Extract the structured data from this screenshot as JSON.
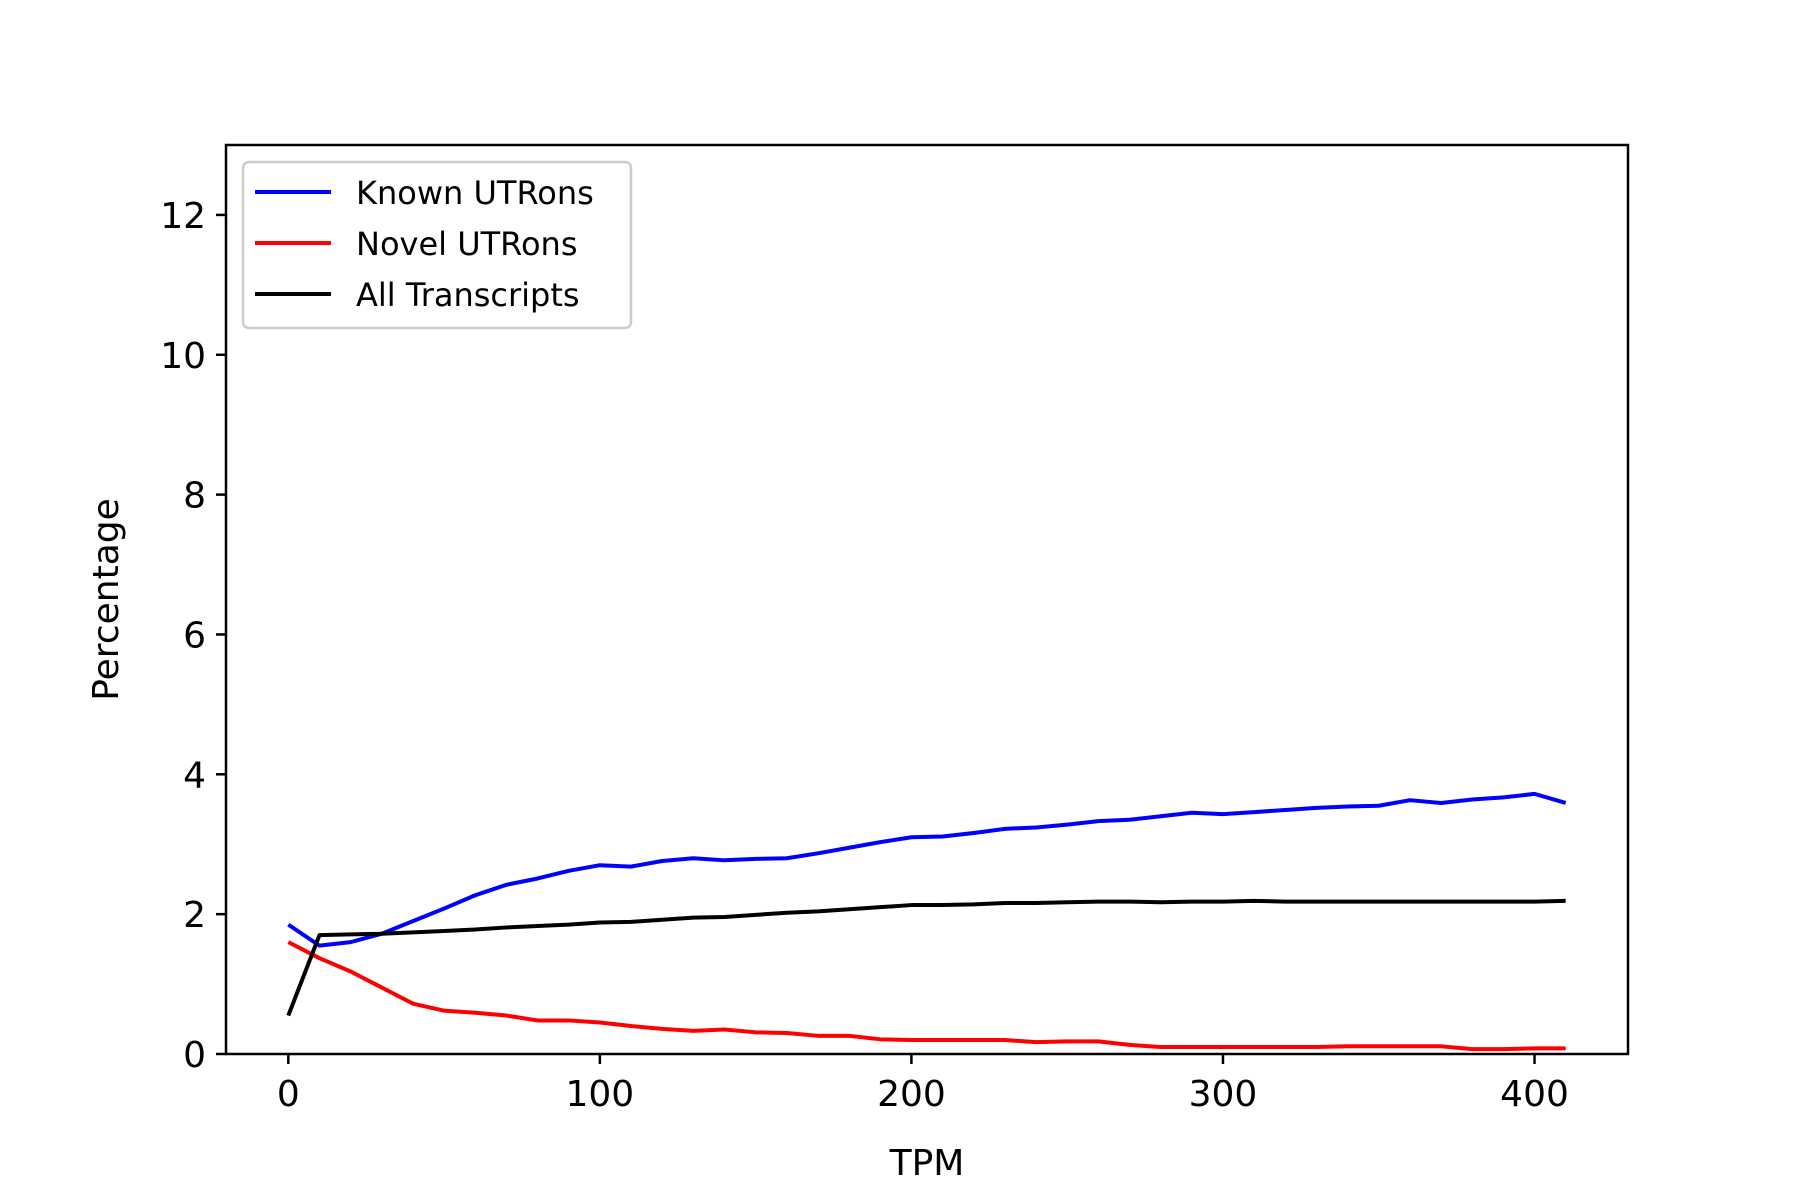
{
  "chart_data": {
    "type": "line",
    "title": "",
    "xlabel": "TPM",
    "ylabel": "Percentage",
    "xlim": [
      -20,
      430
    ],
    "ylim": [
      0,
      13
    ],
    "xticks": [
      0,
      100,
      200,
      300,
      400
    ],
    "xtick_labels": [
      "0",
      "100",
      "200",
      "300",
      "400"
    ],
    "yticks": [
      0,
      2,
      4,
      6,
      8,
      10,
      12
    ],
    "ytick_labels": [
      "0",
      "2",
      "4",
      "6",
      "8",
      "10",
      "12"
    ],
    "grid": false,
    "legend_position": "top-left",
    "x": [
      0,
      10,
      20,
      30,
      40,
      50,
      60,
      70,
      80,
      90,
      100,
      110,
      120,
      130,
      140,
      150,
      160,
      170,
      180,
      190,
      200,
      210,
      220,
      230,
      240,
      250,
      260,
      270,
      280,
      290,
      300,
      310,
      320,
      330,
      340,
      350,
      360,
      370,
      380,
      390,
      400,
      410
    ],
    "series": [
      {
        "name": "Known UTRons",
        "color": "#0000ff",
        "values": [
          1.85,
          1.55,
          1.6,
          1.72,
          1.9,
          2.08,
          2.27,
          2.42,
          2.51,
          2.62,
          2.7,
          2.68,
          2.76,
          2.8,
          2.77,
          2.79,
          2.8,
          2.87,
          2.95,
          3.03,
          3.1,
          3.11,
          3.16,
          3.22,
          3.24,
          3.28,
          3.33,
          3.35,
          3.4,
          3.45,
          3.43,
          3.46,
          3.49,
          3.52,
          3.54,
          3.55,
          3.63,
          3.59,
          3.64,
          3.67,
          3.72,
          3.59
        ]
      },
      {
        "name": "Novel UTRons",
        "color": "#ff0000",
        "values": [
          1.6,
          1.37,
          1.18,
          0.95,
          0.72,
          0.62,
          0.59,
          0.55,
          0.48,
          0.48,
          0.45,
          0.4,
          0.36,
          0.33,
          0.35,
          0.31,
          0.3,
          0.26,
          0.26,
          0.21,
          0.2,
          0.2,
          0.2,
          0.2,
          0.17,
          0.18,
          0.18,
          0.13,
          0.1,
          0.1,
          0.1,
          0.1,
          0.1,
          0.1,
          0.11,
          0.11,
          0.11,
          0.11,
          0.07,
          0.07,
          0.08,
          0.08
        ]
      },
      {
        "name": "All Transcripts",
        "color": "#000000",
        "values": [
          0.55,
          1.7,
          1.71,
          1.72,
          1.74,
          1.76,
          1.78,
          1.81,
          1.83,
          1.85,
          1.88,
          1.89,
          1.92,
          1.95,
          1.96,
          1.99,
          2.02,
          2.04,
          2.07,
          2.1,
          2.13,
          2.13,
          2.14,
          2.16,
          2.16,
          2.17,
          2.18,
          2.18,
          2.17,
          2.18,
          2.18,
          2.19,
          2.18,
          2.18,
          2.18,
          2.18,
          2.18,
          2.18,
          2.18,
          2.18,
          2.18,
          2.19
        ]
      }
    ]
  }
}
